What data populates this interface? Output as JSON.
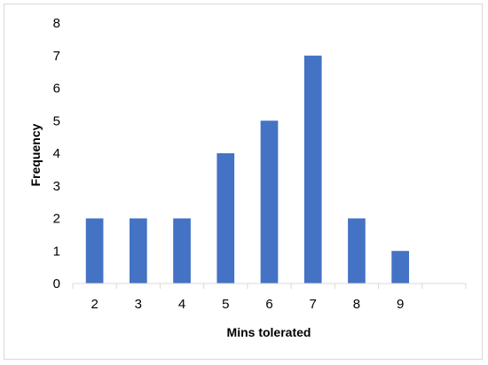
{
  "chart_data": {
    "type": "bar",
    "categories": [
      "2",
      "3",
      "4",
      "5",
      "6",
      "7",
      "8",
      "9",
      ""
    ],
    "values": [
      2,
      2,
      2,
      4,
      5,
      7,
      2,
      1,
      null
    ],
    "title": "",
    "xlabel": "Mins tolerated",
    "ylabel": "Frequency",
    "ylim": [
      0,
      8
    ],
    "yticks": [
      "0",
      "1",
      "2",
      "3",
      "4",
      "5",
      "6",
      "7",
      "8"
    ],
    "grid": false,
    "legend": "none",
    "bar_color": "#4472c4"
  }
}
